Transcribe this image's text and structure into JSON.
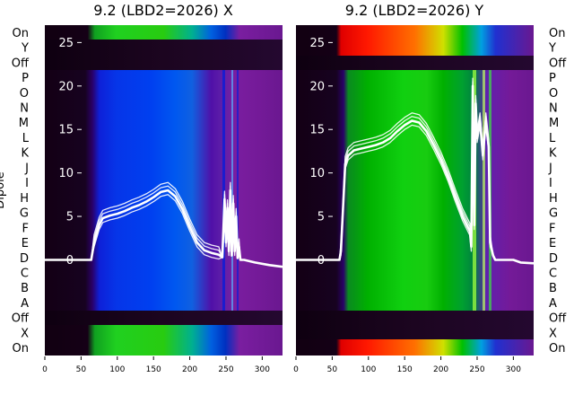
{
  "chart_data": [
    {
      "type": "heatmap",
      "title": "9.2 (LBD2=2026) X",
      "ylabel": "Dipole",
      "row_labels_top_to_bottom": [
        "On",
        "Y",
        "Off",
        "P",
        "O",
        "N",
        "M",
        "L",
        "K",
        "J",
        "I",
        "H",
        "G",
        "F",
        "E",
        "D",
        "C",
        "B",
        "A",
        "Off",
        "X",
        "On"
      ],
      "x_ticks": [
        0,
        50,
        100,
        150,
        200,
        250,
        300
      ],
      "xlim": [
        0,
        328
      ],
      "overlay_y_ticks": [
        25,
        20,
        15,
        10,
        5,
        0
      ],
      "overlay_ylim": [
        -11,
        27
      ],
      "heatmap_colormap": "nipy_spectral",
      "overlay_color": "#ffffff",
      "overlay_curve": {
        "x": [
          0,
          64,
          68,
          75,
          80,
          90,
          100,
          110,
          120,
          130,
          140,
          150,
          160,
          170,
          180,
          190,
          200,
          210,
          220,
          230,
          240,
          245,
          248,
          250,
          252,
          254,
          256,
          258,
          260,
          262,
          264,
          266,
          268,
          270,
          275,
          290,
          310,
          328
        ],
        "y": [
          0,
          0,
          2,
          4,
          4.8,
          5.1,
          5.3,
          5.6,
          6,
          6.3,
          6.7,
          7.2,
          7.8,
          8,
          7.3,
          5.8,
          3.8,
          2,
          1.1,
          0.8,
          0.6,
          0.3,
          7,
          2,
          6,
          1,
          8,
          0.5,
          6.5,
          1,
          5,
          0.2,
          1.5,
          0,
          0,
          -0.3,
          -0.6,
          -0.8
        ]
      }
    },
    {
      "type": "heatmap",
      "title": "9.2 (LBD2=2026) Y",
      "ylabel": "",
      "row_labels_top_to_bottom": [
        "On",
        "Y",
        "Off",
        "P",
        "O",
        "N",
        "M",
        "L",
        "K",
        "J",
        "I",
        "H",
        "G",
        "F",
        "E",
        "D",
        "C",
        "B",
        "A",
        "Off",
        "X",
        "On"
      ],
      "x_ticks": [
        0,
        50,
        100,
        150,
        200,
        250,
        300
      ],
      "xlim": [
        0,
        328
      ],
      "overlay_y_ticks": [
        25,
        20,
        15,
        10,
        5,
        0
      ],
      "overlay_ylim": [
        -11,
        27
      ],
      "heatmap_colormap": "nipy_spectral",
      "overlay_color": "#ffffff",
      "overlay_curve": {
        "x": [
          0,
          60,
          62,
          65,
          68,
          72,
          80,
          90,
          100,
          110,
          120,
          130,
          140,
          150,
          160,
          170,
          180,
          190,
          200,
          210,
          220,
          230,
          240,
          242,
          244,
          246,
          248,
          250,
          254,
          258,
          262,
          266,
          268,
          272,
          275,
          285,
          300,
          310,
          328
        ],
        "y": [
          0,
          0,
          1,
          6,
          11,
          12,
          12.6,
          12.8,
          13,
          13.2,
          13.5,
          14,
          14.8,
          15.5,
          16,
          15.8,
          14.8,
          13.2,
          11.5,
          9.5,
          7.2,
          5,
          3.3,
          1.5,
          20,
          4,
          18,
          14,
          16,
          12,
          16,
          13,
          2,
          0.5,
          0,
          0,
          0,
          -0.3,
          -0.4
        ]
      }
    }
  ]
}
